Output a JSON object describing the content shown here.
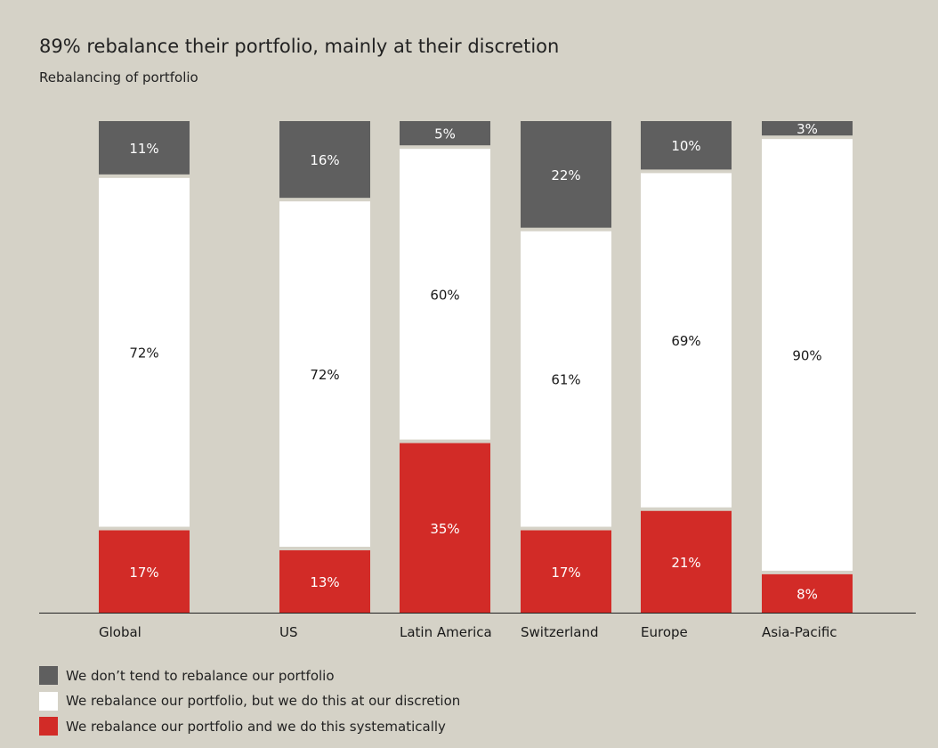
{
  "title": "89% rebalance their portfolio, mainly at their discretion",
  "subtitle": "Rebalancing of portfolio",
  "chart_data": {
    "type": "bar",
    "stacked": true,
    "orientation": "vertical",
    "categories": [
      "Global",
      "US",
      "Latin America",
      "Switzerland",
      "Europe",
      "Asia-Pacific"
    ],
    "series": [
      {
        "name": "We rebalance our portfolio and we do this systematically",
        "color": "#d22b27",
        "values": [
          17,
          13,
          35,
          17,
          21,
          8
        ],
        "labels": [
          "17%",
          "13%",
          "35%",
          "17%",
          "21%",
          "8%"
        ]
      },
      {
        "name": "We rebalance our portfolio, but we do this at our discretion",
        "color": "#ffffff",
        "values": [
          72,
          72,
          60,
          61,
          69,
          90
        ],
        "labels": [
          "72%",
          "72%",
          "60%",
          "61%",
          "69%",
          "90%"
        ]
      },
      {
        "name": "We don’t tend to rebalance our portfolio",
        "color": "#5f5f5f",
        "values": [
          11,
          16,
          5,
          22,
          10,
          3
        ],
        "labels": [
          "11%",
          "16%",
          "5%",
          "22%",
          "10%",
          "3%"
        ]
      }
    ],
    "ylim": [
      0,
      100
    ],
    "grid": false,
    "legend_position": "bottom-left"
  },
  "legend": [
    {
      "label": "We don’t tend to rebalance our portfolio",
      "color": "#5f5f5f"
    },
    {
      "label": "We rebalance our portfolio, but we do this at our discretion",
      "color": "#ffffff"
    },
    {
      "label": "We rebalance our portfolio and we do this systematically",
      "color": "#d22b27"
    }
  ]
}
